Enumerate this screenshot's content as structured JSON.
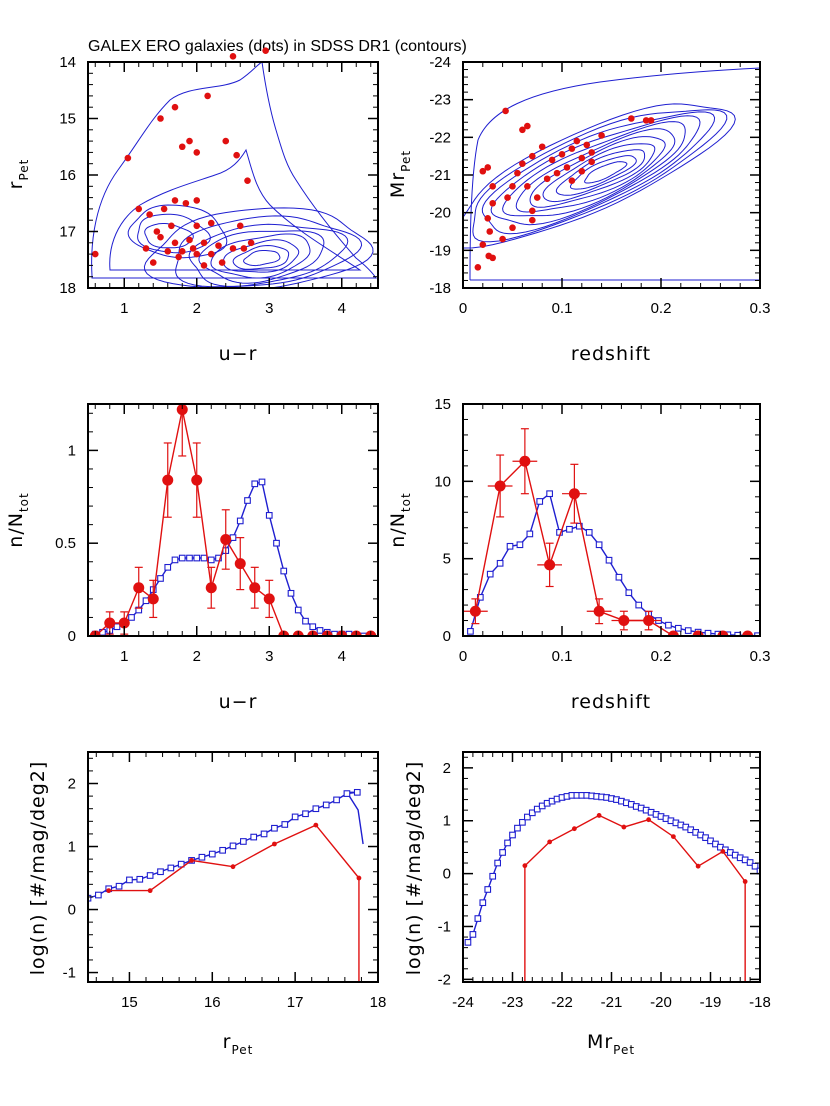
{
  "figure": {
    "title": "GALEX ERO galaxies (dots) in SDSS DR1 (contours)"
  },
  "colors": {
    "sdss": "#1f1fd0",
    "galex": "#e01010",
    "axis": "#000000"
  },
  "chart_data": [
    {
      "id": "p1",
      "type": "scatter",
      "xlabel": "u−r",
      "ylabel_main": "r",
      "ylabel_sub": "Pet",
      "xlim": [
        0.5,
        4.5
      ],
      "ylim": [
        18,
        14
      ],
      "y_inverted": true,
      "xticks": [
        1,
        2,
        3,
        4
      ],
      "yticks": [
        14,
        15,
        16,
        17,
        18
      ],
      "contours_note": "SDSS DR1 density contours (blue)",
      "points": [
        [
          0.6,
          17.4
        ],
        [
          1.05,
          15.7
        ],
        [
          1.5,
          15.0
        ],
        [
          1.7,
          14.8
        ],
        [
          2.15,
          14.6
        ],
        [
          2.5,
          13.9
        ],
        [
          2.95,
          13.8
        ],
        [
          1.8,
          15.5
        ],
        [
          1.9,
          15.4
        ],
        [
          2.0,
          15.6
        ],
        [
          2.4,
          15.4
        ],
        [
          2.55,
          15.65
        ],
        [
          2.7,
          16.1
        ],
        [
          1.2,
          16.6
        ],
        [
          1.35,
          16.7
        ],
        [
          1.55,
          16.6
        ],
        [
          1.7,
          16.45
        ],
        [
          1.85,
          16.5
        ],
        [
          2.0,
          16.45
        ],
        [
          1.45,
          17.0
        ],
        [
          1.65,
          16.9
        ],
        [
          2.0,
          16.9
        ],
        [
          2.2,
          16.85
        ],
        [
          2.6,
          16.9
        ],
        [
          1.3,
          17.3
        ],
        [
          1.5,
          17.1
        ],
        [
          1.7,
          17.2
        ],
        [
          1.9,
          17.15
        ],
        [
          2.1,
          17.2
        ],
        [
          2.3,
          17.25
        ],
        [
          2.5,
          17.3
        ],
        [
          2.75,
          17.2
        ],
        [
          1.6,
          17.35
        ],
        [
          1.8,
          17.35
        ],
        [
          2.0,
          17.4
        ],
        [
          1.4,
          17.55
        ],
        [
          2.1,
          17.6
        ],
        [
          2.35,
          17.55
        ],
        [
          2.65,
          17.3
        ],
        [
          1.75,
          17.45
        ],
        [
          1.95,
          17.3
        ],
        [
          2.2,
          17.4
        ]
      ]
    },
    {
      "id": "p2",
      "type": "scatter",
      "xlabel": "redshift",
      "ylabel_main": "Mr",
      "ylabel_sub": "Pet",
      "xlim": [
        0,
        0.3
      ],
      "ylim": [
        -18,
        -24
      ],
      "y_inverted": true,
      "xticks": [
        0,
        0.1,
        0.2,
        0.3
      ],
      "yticks": [
        -24,
        -23,
        -22,
        -21,
        -20,
        -19,
        -18
      ],
      "contours_note": "SDSS DR1 density contours (blue)",
      "points": [
        [
          0.043,
          -22.7
        ],
        [
          0.065,
          -22.3
        ],
        [
          0.06,
          -22.2
        ],
        [
          0.17,
          -22.5
        ],
        [
          0.185,
          -22.45
        ],
        [
          0.19,
          -22.45
        ],
        [
          0.115,
          -21.9
        ],
        [
          0.125,
          -21.8
        ],
        [
          0.14,
          -22.05
        ],
        [
          0.02,
          -21.1
        ],
        [
          0.025,
          -21.2
        ],
        [
          0.03,
          -20.7
        ],
        [
          0.03,
          -20.25
        ],
        [
          0.025,
          -19.85
        ],
        [
          0.027,
          -19.5
        ],
        [
          0.02,
          -19.15
        ],
        [
          0.026,
          -18.85
        ],
        [
          0.015,
          -18.55
        ],
        [
          0.03,
          -18.8
        ],
        [
          0.045,
          -20.4
        ],
        [
          0.05,
          -20.7
        ],
        [
          0.055,
          -21.05
        ],
        [
          0.06,
          -21.3
        ],
        [
          0.07,
          -21.5
        ],
        [
          0.08,
          -21.75
        ],
        [
          0.09,
          -21.4
        ],
        [
          0.1,
          -21.55
        ],
        [
          0.11,
          -21.7
        ],
        [
          0.065,
          -20.7
        ],
        [
          0.075,
          -20.4
        ],
        [
          0.085,
          -20.9
        ],
        [
          0.095,
          -21.05
        ],
        [
          0.105,
          -21.2
        ],
        [
          0.12,
          -21.45
        ],
        [
          0.13,
          -21.6
        ],
        [
          0.07,
          -19.8
        ],
        [
          0.05,
          -19.6
        ],
        [
          0.04,
          -19.3
        ],
        [
          0.11,
          -20.85
        ],
        [
          0.12,
          -21.1
        ],
        [
          0.13,
          -21.35
        ],
        [
          0.07,
          -20.05
        ]
      ]
    },
    {
      "id": "p3",
      "type": "line",
      "xlabel": "u−r",
      "ylabel_main": "n/N",
      "ylabel_sub": "tot",
      "xlim": [
        0.5,
        4.5
      ],
      "ylim": [
        0,
        1.25
      ],
      "xticks": [
        1,
        2,
        3,
        4
      ],
      "yticks": [
        0,
        0.5,
        1
      ],
      "series": [
        {
          "id": "sdss",
          "marker": "open-square",
          "x": [
            0.6,
            0.7,
            0.8,
            0.9,
            1.0,
            1.1,
            1.2,
            1.3,
            1.4,
            1.5,
            1.6,
            1.7,
            1.8,
            1.9,
            2.0,
            2.1,
            2.2,
            2.3,
            2.4,
            2.5,
            2.6,
            2.7,
            2.8,
            2.9,
            3.0,
            3.1,
            3.2,
            3.3,
            3.4,
            3.5,
            3.6,
            3.7,
            3.8,
            3.9,
            4.0,
            4.1,
            4.2,
            4.3,
            4.4
          ],
          "y": [
            0.01,
            0.02,
            0.03,
            0.05,
            0.07,
            0.1,
            0.14,
            0.19,
            0.25,
            0.31,
            0.37,
            0.41,
            0.42,
            0.42,
            0.42,
            0.42,
            0.41,
            0.42,
            0.46,
            0.53,
            0.62,
            0.73,
            0.82,
            0.83,
            0.65,
            0.5,
            0.35,
            0.23,
            0.14,
            0.08,
            0.05,
            0.03,
            0.02,
            0.01,
            0.01,
            0.01,
            0.0,
            0.0,
            0.0
          ]
        },
        {
          "id": "galex",
          "marker": "filled-circle",
          "x": [
            0.6,
            0.8,
            1.0,
            1.2,
            1.4,
            1.6,
            1.8,
            2.0,
            2.2,
            2.4,
            2.6,
            2.8,
            3.0,
            3.2,
            3.4,
            3.6,
            3.8,
            4.0,
            4.2,
            4.4
          ],
          "y": [
            0.0,
            0.07,
            0.07,
            0.26,
            0.2,
            0.84,
            1.22,
            0.84,
            0.26,
            0.52,
            0.39,
            0.26,
            0.2,
            0.0,
            0.0,
            0.0,
            0.0,
            0.0,
            0.0,
            0.0
          ],
          "yerr": [
            0,
            0.06,
            0.06,
            0.11,
            0.1,
            0.2,
            0.25,
            0.2,
            0.11,
            0.16,
            0.14,
            0.11,
            0.1,
            0,
            0,
            0,
            0,
            0,
            0,
            0
          ]
        }
      ]
    },
    {
      "id": "p4",
      "type": "line",
      "xlabel": "redshift",
      "ylabel_main": "n/N",
      "ylabel_sub": "tot",
      "xlim": [
        0,
        0.3
      ],
      "ylim": [
        0,
        15
      ],
      "xticks": [
        0,
        0.1,
        0.2,
        0.3
      ],
      "yticks": [
        0,
        5,
        10,
        15
      ],
      "series": [
        {
          "id": "sdss",
          "marker": "open-square",
          "x": [
            0.0075,
            0.0175,
            0.0275,
            0.0375,
            0.0475,
            0.0575,
            0.0675,
            0.0775,
            0.0875,
            0.0975,
            0.1075,
            0.1175,
            0.1275,
            0.1375,
            0.1475,
            0.1575,
            0.1675,
            0.1775,
            0.1875,
            0.1975,
            0.2075,
            0.2175,
            0.2275,
            0.2375,
            0.2475,
            0.2575,
            0.2675,
            0.2775,
            0.2875,
            0.2975
          ],
          "y": [
            0.3,
            2.5,
            4.0,
            4.7,
            5.8,
            5.9,
            6.6,
            8.7,
            9.2,
            6.7,
            6.9,
            7.1,
            6.7,
            5.9,
            4.9,
            3.8,
            2.8,
            2.0,
            1.4,
            1.0,
            0.7,
            0.5,
            0.35,
            0.25,
            0.18,
            0.12,
            0.08,
            0.05,
            0.03,
            0.02
          ]
        },
        {
          "id": "galex",
          "marker": "filled-circle",
          "x": [
            0.0125,
            0.0375,
            0.0625,
            0.0875,
            0.1125,
            0.1375,
            0.1625,
            0.1875,
            0.2125,
            0.2375,
            0.2625,
            0.2875
          ],
          "y": [
            1.6,
            9.7,
            11.3,
            4.6,
            9.2,
            1.6,
            1.0,
            1.0,
            0.0,
            0.0,
            0.0,
            0.0
          ],
          "yerr": [
            0.8,
            2.0,
            2.1,
            1.4,
            1.9,
            0.8,
            0.6,
            0.6,
            0,
            0,
            0,
            0
          ],
          "xerr": [
            0.0125,
            0.0125,
            0.0125,
            0.0125,
            0.0125,
            0.0125,
            0.0125,
            0.0125,
            0.0125,
            0.0125,
            0.0125,
            0.0125
          ]
        }
      ]
    },
    {
      "id": "p5",
      "type": "line",
      "xlabel_main": "r",
      "xlabel_sub": "Pet",
      "ylabel": "log(n)  [#/mag/deg2]",
      "xlim": [
        14.5,
        18
      ],
      "ylim": [
        -1.15,
        2.5
      ],
      "xticks": [
        15,
        16,
        17,
        18
      ],
      "yticks": [
        -1,
        0,
        1,
        2
      ],
      "series": [
        {
          "id": "sdss",
          "marker": "open-square",
          "x": [
            14.5,
            14.625,
            14.75,
            14.875,
            15.0,
            15.125,
            15.25,
            15.375,
            15.5,
            15.625,
            15.75,
            15.875,
            16.0,
            16.125,
            16.25,
            16.375,
            16.5,
            16.625,
            16.75,
            16.875,
            17.0,
            17.125,
            17.25,
            17.375,
            17.5,
            17.625,
            17.75
          ],
          "y": [
            0.18,
            0.23,
            0.33,
            0.37,
            0.47,
            0.48,
            0.54,
            0.6,
            0.66,
            0.72,
            0.78,
            0.83,
            0.88,
            0.94,
            1.01,
            1.08,
            1.15,
            1.2,
            1.29,
            1.35,
            1.47,
            1.52,
            1.6,
            1.66,
            1.74,
            1.84,
            1.86
          ],
          "tail": {
            "x": [
              17.625,
              17.76,
              17.82
            ],
            "y": [
              1.86,
              1.58,
              1.04
            ]
          }
        },
        {
          "id": "galex",
          "marker": "dot",
          "x": [
            14.75,
            15.25,
            15.75,
            16.25,
            16.75,
            17.25,
            17.77
          ],
          "y": [
            0.3,
            0.3,
            0.78,
            0.68,
            1.04,
            1.34,
            0.5
          ],
          "drop_x": 17.77
        }
      ]
    },
    {
      "id": "p6",
      "type": "line",
      "xlabel_main": "Mr",
      "xlabel_sub": "Pet",
      "ylabel": "log(n)  [#/mag/deg2]",
      "xlim": [
        -24,
        -18
      ],
      "ylim": [
        -2.05,
        2.3
      ],
      "xticks": [
        -24,
        -23,
        -22,
        -21,
        -20,
        -19,
        -18
      ],
      "yticks": [
        -2,
        -1,
        0,
        1,
        2
      ],
      "series": [
        {
          "id": "sdss",
          "marker": "open-square",
          "x": [
            -23.9,
            -23.8,
            -23.7,
            -23.6,
            -23.5,
            -23.4,
            -23.3,
            -23.2,
            -23.1,
            -23.0,
            -22.9,
            -22.8,
            -22.7,
            -22.6,
            -22.5,
            -22.4,
            -22.3,
            -22.2,
            -22.1,
            -22.0,
            -21.9,
            -21.8,
            -21.7,
            -21.6,
            -21.5,
            -21.4,
            -21.3,
            -21.2,
            -21.1,
            -21.0,
            -20.9,
            -20.8,
            -20.7,
            -20.6,
            -20.5,
            -20.4,
            -20.3,
            -20.2,
            -20.1,
            -20.0,
            -19.9,
            -19.8,
            -19.7,
            -19.6,
            -19.5,
            -19.4,
            -19.3,
            -19.2,
            -19.1,
            -19.0,
            -18.9,
            -18.8,
            -18.7,
            -18.6,
            -18.5,
            -18.4,
            -18.3,
            -18.2,
            -18.1,
            -18.0
          ],
          "y": [
            -1.3,
            -1.15,
            -0.85,
            -0.55,
            -0.3,
            -0.05,
            0.2,
            0.4,
            0.58,
            0.73,
            0.86,
            0.97,
            1.07,
            1.15,
            1.22,
            1.28,
            1.33,
            1.37,
            1.41,
            1.44,
            1.46,
            1.48,
            1.48,
            1.48,
            1.48,
            1.47,
            1.46,
            1.45,
            1.44,
            1.42,
            1.4,
            1.37,
            1.34,
            1.31,
            1.27,
            1.24,
            1.2,
            1.16,
            1.12,
            1.08,
            1.04,
            1.0,
            0.96,
            0.92,
            0.88,
            0.83,
            0.78,
            0.73,
            0.68,
            0.62,
            0.56,
            0.5,
            0.45,
            0.4,
            0.35,
            0.3,
            0.26,
            0.21,
            0.14,
            0.05
          ],
          "tail": {
            "x": [
              -18.0,
              -17.97
            ],
            "y": [
              0.05,
              -2.05
            ]
          }
        },
        {
          "id": "galex",
          "marker": "dot",
          "x": [
            -22.75,
            -22.25,
            -21.75,
            -21.25,
            -20.75,
            -20.25,
            -19.75,
            -19.25,
            -18.75,
            -18.3
          ],
          "y": [
            0.15,
            0.6,
            0.85,
            1.1,
            0.88,
            1.02,
            0.7,
            0.14,
            0.42,
            -0.15
          ],
          "drop_x": [
            -22.75,
            -18.3
          ]
        }
      ]
    }
  ]
}
